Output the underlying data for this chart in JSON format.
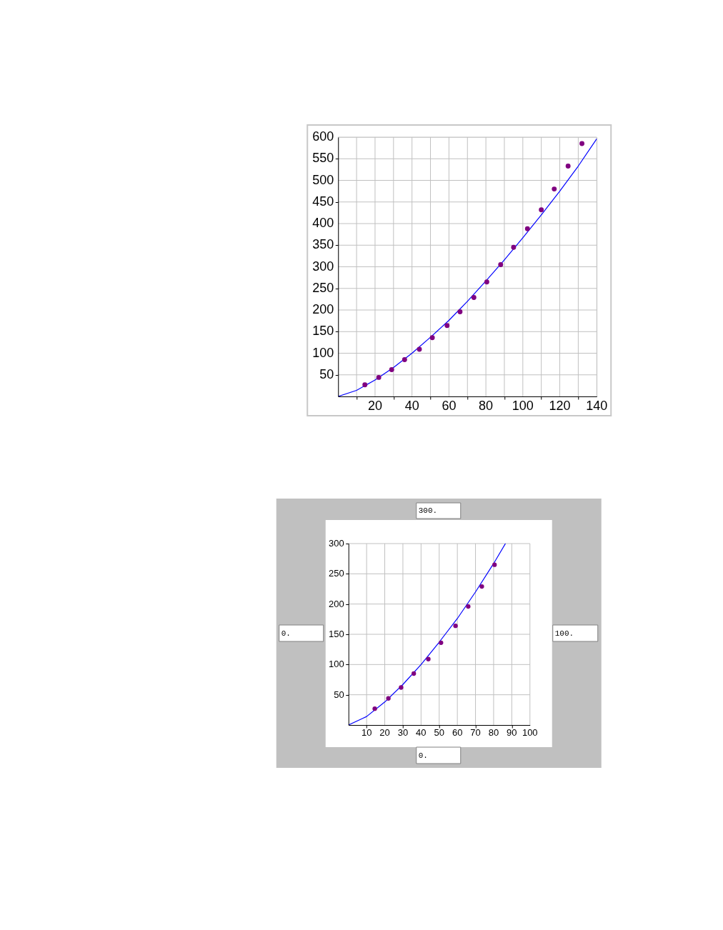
{
  "chart_data": [
    {
      "type": "scatter",
      "xlim": [
        0,
        140
      ],
      "ylim": [
        0,
        600
      ],
      "xticks": [
        {
          "value": 10,
          "label": null
        },
        20,
        {
          "value": 30,
          "label": null
        },
        40,
        {
          "value": 50,
          "label": null
        },
        60,
        {
          "value": 70,
          "label": null
        },
        80,
        {
          "value": 90,
          "label": null
        },
        100,
        {
          "value": 110,
          "label": null
        },
        120,
        {
          "value": 130,
          "label": null
        },
        140
      ],
      "yticks": [
        50,
        100,
        150,
        200,
        250,
        300,
        350,
        400,
        450,
        500,
        550,
        600
      ],
      "grid": true,
      "marker": "circle",
      "series": [
        {
          "type": "line",
          "color": "#0000ff",
          "marker": "none",
          "line_style": "solid",
          "x": [
            0,
            10,
            20,
            30,
            40,
            50,
            60,
            70,
            80,
            90,
            100,
            110,
            120,
            130,
            140
          ],
          "values": [
            0,
            14,
            38,
            67,
            100,
            137,
            176,
            220,
            267,
            316,
            367,
            420,
            475,
            533,
            596
          ]
        },
        {
          "color": "#800080",
          "x": [
            14.5,
            22,
            29,
            36,
            44,
            51,
            59,
            66,
            73.5,
            80.5,
            88,
            95,
            102.5,
            110,
            117,
            124.5,
            132
          ],
          "values": [
            27,
            44,
            62,
            85,
            109,
            136,
            164,
            196,
            229,
            265,
            305,
            345,
            388,
            432,
            480,
            533,
            585
          ]
        }
      ]
    },
    {
      "type": "scatter",
      "xlim": [
        0,
        100
      ],
      "ylim": [
        0,
        300
      ],
      "xticks": [
        10,
        20,
        30,
        40,
        50,
        60,
        70,
        80,
        90,
        100
      ],
      "yticks": [
        50,
        100,
        150,
        200,
        250,
        300
      ],
      "grid": true,
      "marker": "circle",
      "series": [
        {
          "type": "line",
          "color": "#0000ff",
          "marker": "none",
          "line_style": "solid",
          "x": [
            0,
            10,
            20,
            30,
            40,
            50,
            60,
            70,
            80,
            86.5
          ],
          "values": [
            0,
            14,
            38,
            67,
            100,
            137,
            176,
            220,
            267,
            300
          ]
        },
        {
          "color": "#800080",
          "x": [
            14.5,
            22,
            29,
            36,
            44,
            51,
            59,
            66,
            73.5,
            80.5
          ],
          "values": [
            27,
            44,
            62,
            85,
            109,
            136,
            164,
            196,
            229,
            265
          ]
        }
      ],
      "annotations": [
        "300.",
        "0.",
        "100.",
        "0."
      ]
    }
  ]
}
